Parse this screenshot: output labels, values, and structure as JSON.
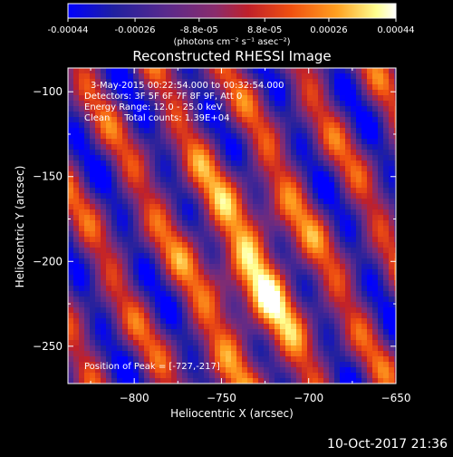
{
  "chart_data": {
    "type": "heatmap",
    "title": "Reconstructed RHESSI Image",
    "xlabel": "Heliocentric X (arcsec)",
    "ylabel": "Heliocentric Y (arcsec)",
    "xlim": [
      -838,
      -650
    ],
    "ylim": [
      -272,
      -86
    ],
    "x_ticks": [
      -800,
      -750,
      -700,
      -650
    ],
    "x_tick_labels": [
      "−800",
      "−750",
      "−700",
      "−650"
    ],
    "y_ticks": [
      -100,
      -150,
      -200,
      -250
    ],
    "y_tick_labels": [
      "−100",
      "−150",
      "−200",
      "−250"
    ],
    "info_lines": [
      "3-May-2015 00:22:54.000 to 00:32:54.000",
      "Detectors: 3F 5F 6F 7F 8F 9F, Att 0",
      "Energy Range: 12.0 - 25.0 keV",
      "Clean     Total counts: 1.39E+04"
    ],
    "peak_label": "Position of Peak = [-727,-217]",
    "peak": [
      -727,
      -217
    ],
    "colorbar": {
      "min": -0.00044,
      "max": 0.00044,
      "tick_values": [
        -0.00044,
        -0.00026,
        -8.8e-05,
        8.8e-05,
        0.00026,
        0.00044
      ],
      "tick_labels": [
        "-0.00044",
        "-0.00026",
        "-8.8e-05",
        "8.8e-05",
        "0.00026",
        "0.00044"
      ],
      "unit_label": "(photons cm⁻² s⁻¹ asec⁻²)"
    },
    "colors": {
      "background": "#000000",
      "colormap": [
        "#0000ff",
        "#2020a0",
        "#5a2a8c",
        "#8a2c6c",
        "#c0202a",
        "#f05010",
        "#ffa020",
        "#ffff90",
        "#ffffff"
      ]
    },
    "grid": false
  },
  "footer": {
    "timestamp": "10-Oct-2017 21:36"
  }
}
